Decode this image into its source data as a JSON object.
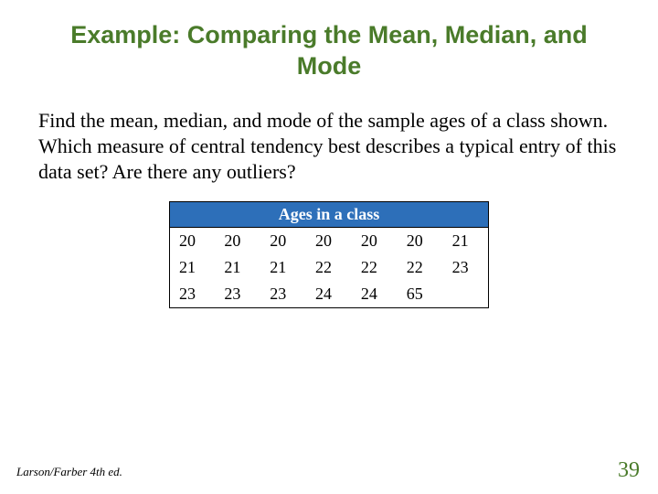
{
  "title": "Example: Comparing the Mean, Median, and Mode",
  "body": "Find the mean, median, and mode of the sample ages of a class shown. Which measure of central tendency best describes a typical entry of this data set? Are there any outliers?",
  "table": {
    "header": "Ages in a class",
    "header_bg": "#2d6fb9",
    "header_fg": "#ffffff",
    "border_color": "#000000",
    "rows": [
      [
        "20",
        "20",
        "20",
        "20",
        "20",
        "20",
        "21"
      ],
      [
        "21",
        "21",
        "21",
        "22",
        "22",
        "22",
        "23"
      ],
      [
        "23",
        "23",
        "23",
        "24",
        "24",
        "65",
        ""
      ]
    ]
  },
  "footer_left": "Larson/Farber 4th ed.",
  "page_number": "39",
  "colors": {
    "title_color": "#4a7b2a",
    "page_number_color": "#4a7b2a",
    "background": "#ffffff"
  }
}
